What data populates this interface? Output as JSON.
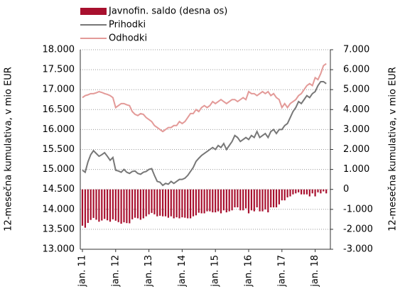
{
  "chart_data": {
    "type": "bar_line",
    "y_label": "12-mesečna kumulativa, v mio EUR",
    "y2_label": "12-mesečna kumulativa, v mio EUR",
    "categories": [
      "jan. 11",
      null,
      null,
      null,
      null,
      null,
      null,
      null,
      null,
      null,
      null,
      null,
      "jan. 12",
      null,
      null,
      null,
      null,
      null,
      null,
      null,
      null,
      null,
      null,
      null,
      "jan. 13",
      null,
      null,
      null,
      null,
      null,
      null,
      null,
      null,
      null,
      null,
      null,
      "jan. 14",
      null,
      null,
      null,
      null,
      null,
      null,
      null,
      null,
      null,
      null,
      null,
      "jan. 15",
      null,
      null,
      null,
      null,
      null,
      null,
      null,
      null,
      null,
      null,
      null,
      "jan. 16",
      null,
      null,
      null,
      null,
      null,
      null,
      null,
      null,
      null,
      null,
      null,
      "jan. 17",
      null,
      null,
      null,
      null,
      null,
      null,
      null,
      null,
      null,
      null,
      null,
      "jan. 18",
      null,
      null,
      null,
      null
    ],
    "series": [
      {
        "name": "Javnofin. saldo (desna os)",
        "type": "bar",
        "axis": "y2",
        "color": "#a8102e",
        "values": [
          -1820,
          -1920,
          -1680,
          -1530,
          -1430,
          -1520,
          -1620,
          -1560,
          -1480,
          -1550,
          -1620,
          -1500,
          -1570,
          -1640,
          -1720,
          -1650,
          -1690,
          -1700,
          -1500,
          -1420,
          -1450,
          -1520,
          -1450,
          -1350,
          -1250,
          -1180,
          -1250,
          -1350,
          -1320,
          -1350,
          -1350,
          -1420,
          -1350,
          -1450,
          -1400,
          -1450,
          -1400,
          -1420,
          -1450,
          -1450,
          -1350,
          -1300,
          -1170,
          -1200,
          -1200,
          -1100,
          -1100,
          -1150,
          -1150,
          -1100,
          -1200,
          -1050,
          -1150,
          -1100,
          -1050,
          -900,
          -900,
          -1050,
          -1050,
          -950,
          -1200,
          -1050,
          -1100,
          -900,
          -1100,
          -1100,
          -1000,
          -1150,
          -900,
          -900,
          -900,
          -750,
          -550,
          -550,
          -400,
          -350,
          -250,
          -200,
          -150,
          -250,
          -250,
          -250,
          -350,
          -200,
          -350,
          -150,
          -200,
          -100,
          -200
        ]
      },
      {
        "name": "Prihodki",
        "type": "line",
        "axis": "y",
        "color": "#777777",
        "values": [
          14980,
          14930,
          15190,
          15370,
          15470,
          15400,
          15330,
          15370,
          15420,
          15330,
          15230,
          15300,
          14980,
          14960,
          14930,
          15000,
          14930,
          14900,
          14950,
          14960,
          14900,
          14880,
          14930,
          14950,
          15000,
          15020,
          14850,
          14700,
          14680,
          14600,
          14650,
          14630,
          14700,
          14650,
          14700,
          14750,
          14750,
          14780,
          14850,
          14950,
          15050,
          15200,
          15280,
          15350,
          15400,
          15450,
          15500,
          15550,
          15500,
          15600,
          15550,
          15650,
          15500,
          15600,
          15700,
          15850,
          15800,
          15700,
          15750,
          15800,
          15750,
          15850,
          15800,
          15950,
          15800,
          15850,
          15900,
          15800,
          15950,
          16000,
          15900,
          16000,
          16000,
          16100,
          16150,
          16300,
          16450,
          16550,
          16700,
          16650,
          16750,
          16850,
          16800,
          16900,
          16950,
          17100,
          17200,
          17200,
          17150
        ]
      },
      {
        "name": "Odhodki",
        "type": "line",
        "axis": "y",
        "color": "#e39a98",
        "values": [
          16800,
          16850,
          16870,
          16900,
          16900,
          16920,
          16950,
          16930,
          16900,
          16880,
          16850,
          16800,
          16550,
          16600,
          16650,
          16650,
          16620,
          16600,
          16450,
          16380,
          16350,
          16400,
          16380,
          16300,
          16250,
          16200,
          16100,
          16050,
          16000,
          15950,
          16000,
          16050,
          16050,
          16100,
          16100,
          16200,
          16150,
          16200,
          16300,
          16400,
          16400,
          16500,
          16450,
          16550,
          16600,
          16550,
          16600,
          16700,
          16650,
          16700,
          16750,
          16700,
          16650,
          16700,
          16750,
          16750,
          16700,
          16750,
          16800,
          16750,
          16950,
          16900,
          16900,
          16850,
          16900,
          16950,
          16900,
          16950,
          16850,
          16900,
          16800,
          16750,
          16550,
          16650,
          16550,
          16650,
          16700,
          16750,
          16850,
          16900,
          17000,
          17100,
          17150,
          17100,
          17300,
          17250,
          17400,
          17600,
          17650
        ]
      }
    ],
    "ylim": [
      13000,
      18000
    ],
    "yticks": [
      {
        "value": 13000,
        "label": "13.000"
      },
      {
        "value": 13500,
        "label": "13.500"
      },
      {
        "value": 14000,
        "label": "14.000"
      },
      {
        "value": 14500,
        "label": "14.500"
      },
      {
        "value": 15000,
        "label": "15.000"
      },
      {
        "value": 15500,
        "label": "15.500"
      },
      {
        "value": 16000,
        "label": "16.000"
      },
      {
        "value": 16500,
        "label": "16.500"
      },
      {
        "value": 17000,
        "label": "17.000"
      },
      {
        "value": 17500,
        "label": "17.500"
      },
      {
        "value": 18000,
        "label": "18.000"
      }
    ],
    "y2lim": [
      -3000,
      7000
    ],
    "y2ticks": [
      {
        "value": -3000,
        "label": "-3.000"
      },
      {
        "value": -2000,
        "label": "-2.000"
      },
      {
        "value": -1000,
        "label": "-1.000"
      },
      0,
      {
        "value": 1000,
        "label": "1.000"
      },
      {
        "value": 2000,
        "label": "2.000"
      },
      {
        "value": 3000,
        "label": "3.000"
      },
      {
        "value": 4000,
        "label": "4.000"
      },
      {
        "value": 5000,
        "label": "5.000"
      },
      {
        "value": 6000,
        "label": "6.000"
      },
      {
        "value": 7000,
        "label": "7.000"
      }
    ],
    "grid": true
  }
}
